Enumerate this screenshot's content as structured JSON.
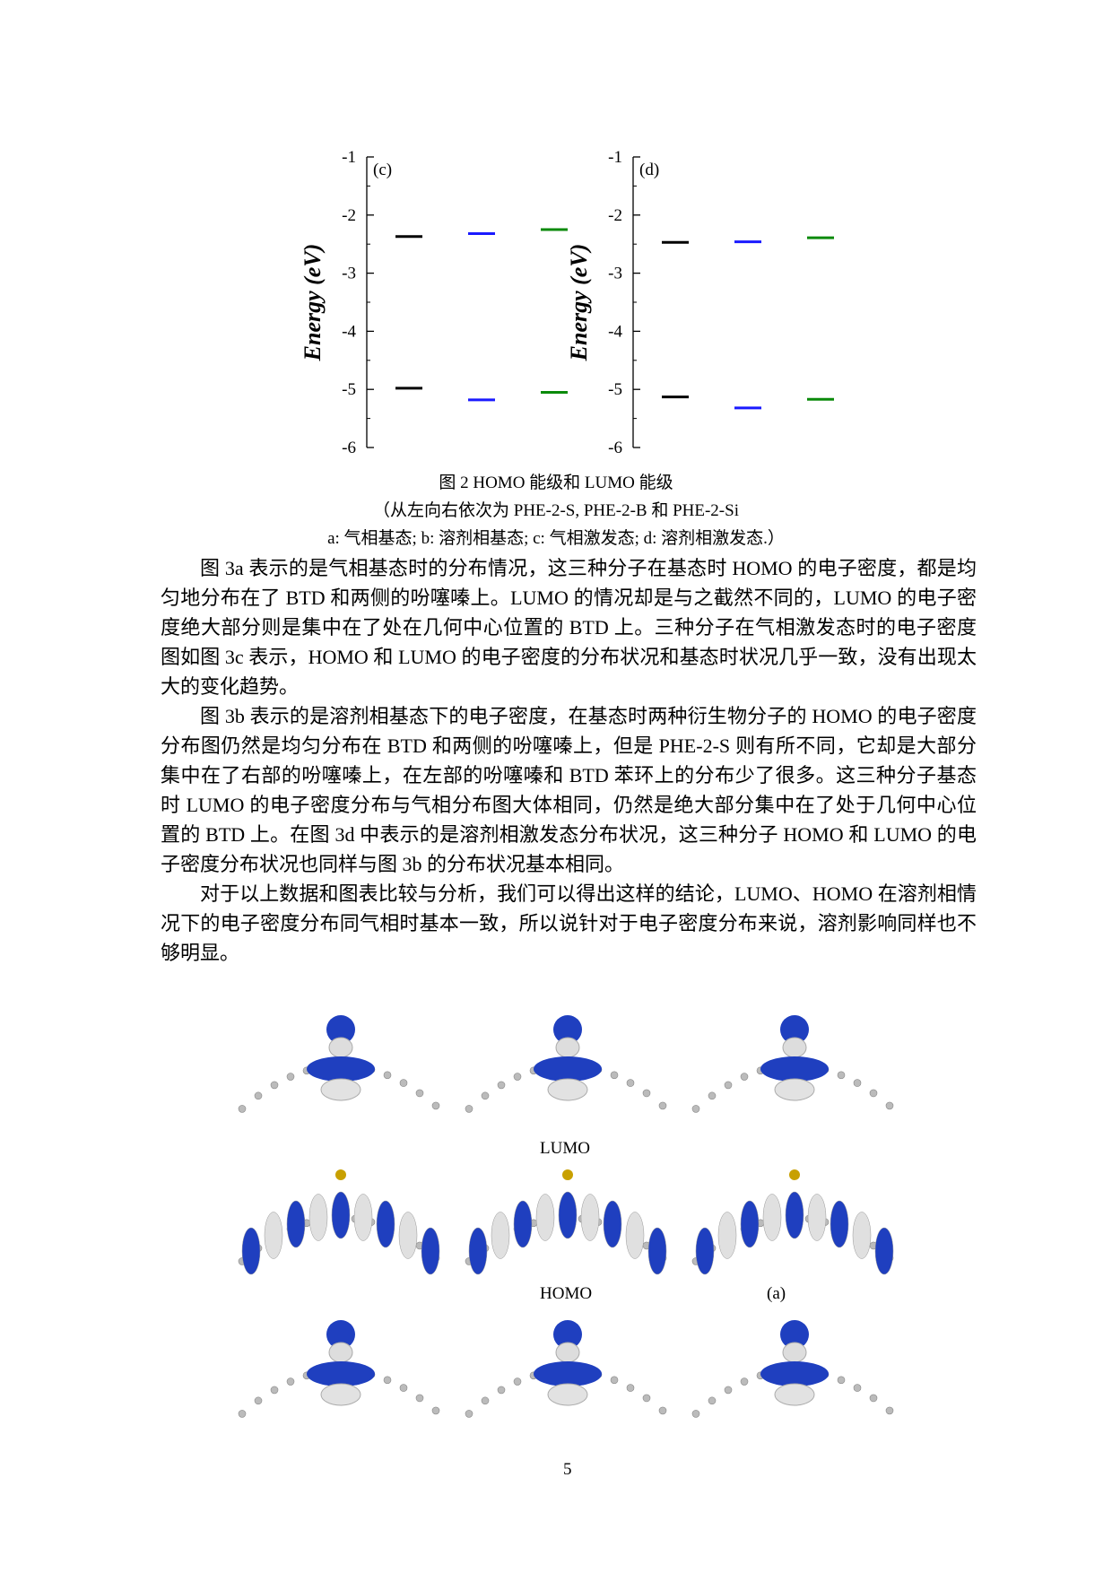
{
  "chart_data": [
    {
      "type": "level",
      "panel_label": "(c)",
      "ylabel": "Energy (eV)",
      "ylim": [
        -6,
        -1
      ],
      "yticks": [
        -1,
        -2,
        -3,
        -4,
        -5,
        -6
      ],
      "series": [
        {
          "color": "#000000",
          "values": [
            -2.37,
            -4.98
          ]
        },
        {
          "color": "#1a1aff",
          "values": [
            -2.32,
            -5.18
          ]
        },
        {
          "color": "#0a8a0a",
          "values": [
            -2.25,
            -5.05
          ]
        }
      ]
    },
    {
      "type": "level",
      "panel_label": "(d)",
      "ylabel": "Energy (eV)",
      "ylim": [
        -6,
        -1
      ],
      "yticks": [
        -1,
        -2,
        -3,
        -4,
        -5,
        -6
      ],
      "series": [
        {
          "color": "#000000",
          "values": [
            -2.47,
            -5.13
          ]
        },
        {
          "color": "#1a1aff",
          "values": [
            -2.46,
            -5.32
          ]
        },
        {
          "color": "#0a8a0a",
          "values": [
            -2.39,
            -5.17
          ]
        }
      ]
    }
  ],
  "caption": [
    "图 2 HOMO 能级和 LUMO 能级",
    "（从左向右依次为 PHE-2-S, PHE-2-B 和 PHE-2-Si",
    "a: 气相基态; b: 溶剂相基态; c: 气相激发态; d: 溶剂相激发态.）"
  ],
  "paragraphs": [
    "图 3a 表示的是气相基态时的分布情况，这三种分子在基态时 HOMO 的电子密度，都是均匀地分布在了 BTD 和两侧的吩噻嗪上。LUMO 的情况却是与之截然不同的，LUMO 的电子密度绝大部分则是集中在了处在几何中心位置的 BTD 上。三种分子在气相激发态时的电子密度图如图 3c 表示，HOMO 和 LUMO 的电子密度的分布状况和基态时状况几乎一致，没有出现太大的变化趋势。",
    "图 3b 表示的是溶剂相基态下的电子密度，在基态时两种衍生物分子的 HOMO 的电子密度分布图仍然是均匀分布在 BTD 和两侧的吩噻嗪上，但是 PHE-2-S 则有所不同，它却是大部分集中在了右部的吩噻嗪上，在左部的吩噻嗪和 BTD 苯环上的分布少了很多。这三种分子基态时 LUMO 的电子密度分布与气相分布图大体相同，仍然是绝大部分集中在了处于几何中心位置的 BTD 上。在图 3d 中表示的是溶剂相激发态分布状况，这三种分子 HOMO 和 LUMO 的电子密度分布状况也同样与图 3b 的分布状况基本相同。",
    "对于以上数据和图表比较与分析，我们可以得出这样的结论，LUMO、HOMO 在溶剂相情况下的电子密度分布同气相时基本一致，所以说针对于电子密度分布来说，溶剂影响同样也不够明显。"
  ],
  "figure_labels": {
    "lumo": "LUMO",
    "homo": "HOMO",
    "panel": "(a)"
  },
  "page_number": "5"
}
